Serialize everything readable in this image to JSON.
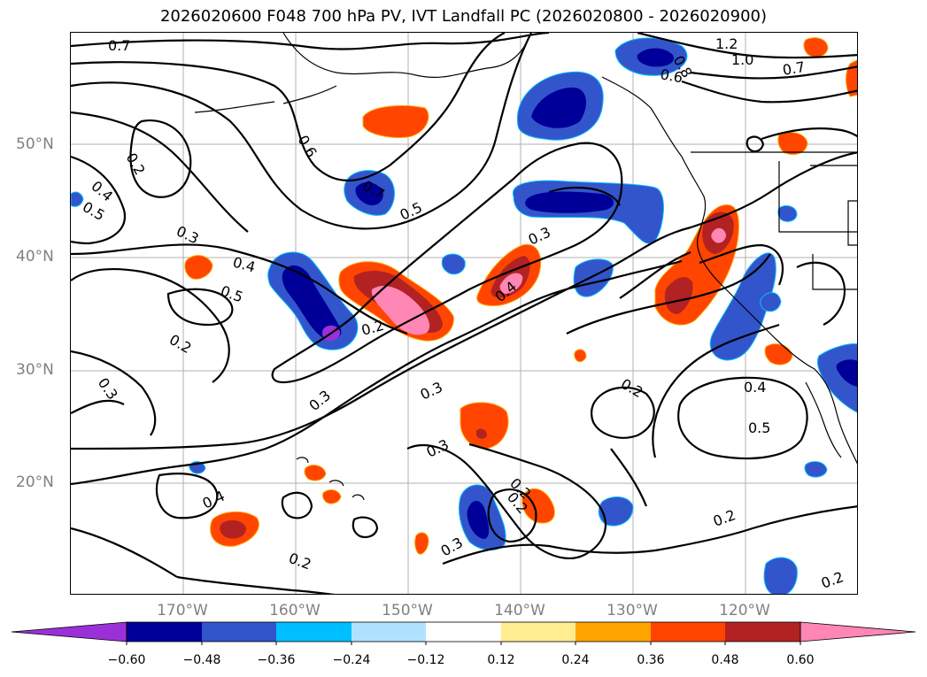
{
  "title": "2026020600 F048 700 hPa PV, IVT Landfall PC (2026020800 - 2026020900)",
  "latitude_labels": [
    "50°N",
    "40°N",
    "30°N",
    "20°N"
  ],
  "longitude_labels": [
    "170°W",
    "160°W",
    "150°W",
    "140°W",
    "130°W",
    "120°W"
  ],
  "colorbar": {
    "colors": [
      "#9b30d9",
      "#000099",
      "#3355cc",
      "#00bfff",
      "#b0e2ff",
      "#ffffff",
      "#ffed8f",
      "#ffa500",
      "#ff4500",
      "#b22222",
      "#ff86b5"
    ],
    "tick_labels": [
      "−0.60",
      "−0.48",
      "−0.36",
      "−0.24",
      "−0.12",
      "0.12",
      "0.24",
      "0.36",
      "0.48",
      "0.60"
    ]
  },
  "contour_labels": [
    "0.7",
    "0.6",
    "0.2",
    "0.4",
    "0.5",
    "0.3",
    "0.4",
    "0.5",
    "0.2",
    "0.3",
    "0.7",
    "0.5",
    "0.2",
    "0.3",
    "0.4",
    "0.3",
    "0.3",
    "0.3",
    "0.4",
    "0.2",
    "0.3",
    "0.2",
    "0.2",
    "0.2",
    "0.4",
    "0.5",
    "1.2",
    "1.0",
    "0.7",
    "0.8",
    "0.6",
    "0.2",
    "0.2"
  ]
}
